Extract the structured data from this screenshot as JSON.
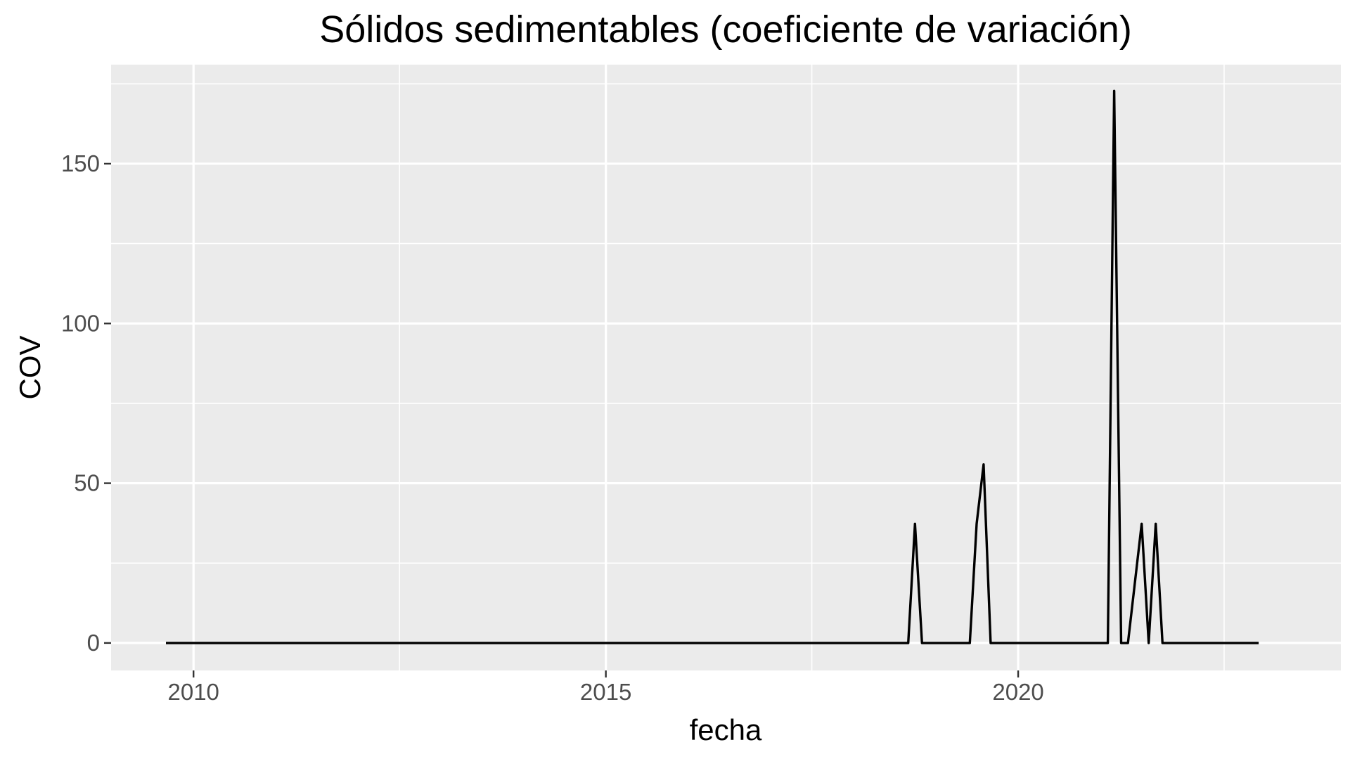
{
  "chart_data": {
    "type": "line",
    "title": "Sólidos sedimentables (coeficiente de variación)",
    "xlabel": "fecha",
    "ylabel": "COV",
    "x_axis_type": "date",
    "xlim": [
      "2009-01-01",
      "2023-11-30"
    ],
    "ylim": [
      -8.6,
      181
    ],
    "x_ticks": [
      {
        "date": "2010-01-01",
        "label": "2010"
      },
      {
        "date": "2015-01-01",
        "label": "2015"
      },
      {
        "date": "2020-01-01",
        "label": "2020"
      }
    ],
    "x_minor_ticks": [
      "2012-07-01",
      "2017-07-01",
      "2022-07-01"
    ],
    "y_ticks": [
      0,
      50,
      100,
      150
    ],
    "y_minor_ticks": [
      25,
      75,
      125,
      175
    ],
    "grid": true,
    "legend": "none",
    "colors": {
      "panel": "#ebebeb",
      "grid": "#ffffff",
      "line": "#000000",
      "tick": "#333333"
    },
    "series": [
      {
        "x": [
          "2009-09-01",
          "2018-09-01",
          "2018-10-01",
          "2018-11-01",
          "2019-06-01",
          "2019-07-01",
          "2019-08-01",
          "2019-09-01",
          "2021-02-01",
          "2021-03-01",
          "2021-04-01",
          "2021-05-01",
          "2021-07-01",
          "2021-08-01",
          "2021-09-01",
          "2021-10-01",
          "2022-12-01"
        ],
        "values": [
          0,
          0,
          37.3,
          0,
          0,
          37.3,
          55.9,
          0,
          0,
          172.8,
          0,
          0,
          37.3,
          0,
          37.3,
          0,
          0
        ]
      }
    ]
  }
}
